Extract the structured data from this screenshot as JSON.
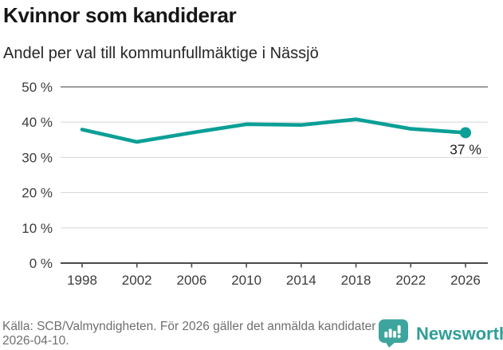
{
  "chart_data": {
    "type": "line",
    "title": "Kvinnor som kandiderar",
    "subtitle": "Andel per val till kommunfullmäktige i Nässjö",
    "categories": [
      "1998",
      "2002",
      "2006",
      "2010",
      "2014",
      "2018",
      "2022",
      "2026"
    ],
    "values": [
      37.9,
      34.4,
      37,
      39.4,
      39.2,
      40.8,
      38.1,
      37
    ],
    "end_label": "37 %",
    "y_ticks": [
      "0 %",
      "10 %",
      "20 %",
      "30 %",
      "40 %",
      "50 %"
    ],
    "ylim": [
      0,
      50
    ],
    "grid": true,
    "legend_position": "none",
    "line_color": "#0b9f96",
    "gridline_color": "#dadada",
    "top_gridline_color": "#7f7f7f",
    "axis_color": "#4a4a4a",
    "tick_label_color": "#3c3c3c",
    "end_label_color": "#1f1f1f"
  },
  "footer": {
    "source": "Källa: SCB/Valmyndigheten. För 2026 gäller det anmälda kandidater 2026-04-10.",
    "brand": "Newsworthy",
    "brand_color": "#2f9e98",
    "icon_color": "#3ea59e"
  }
}
